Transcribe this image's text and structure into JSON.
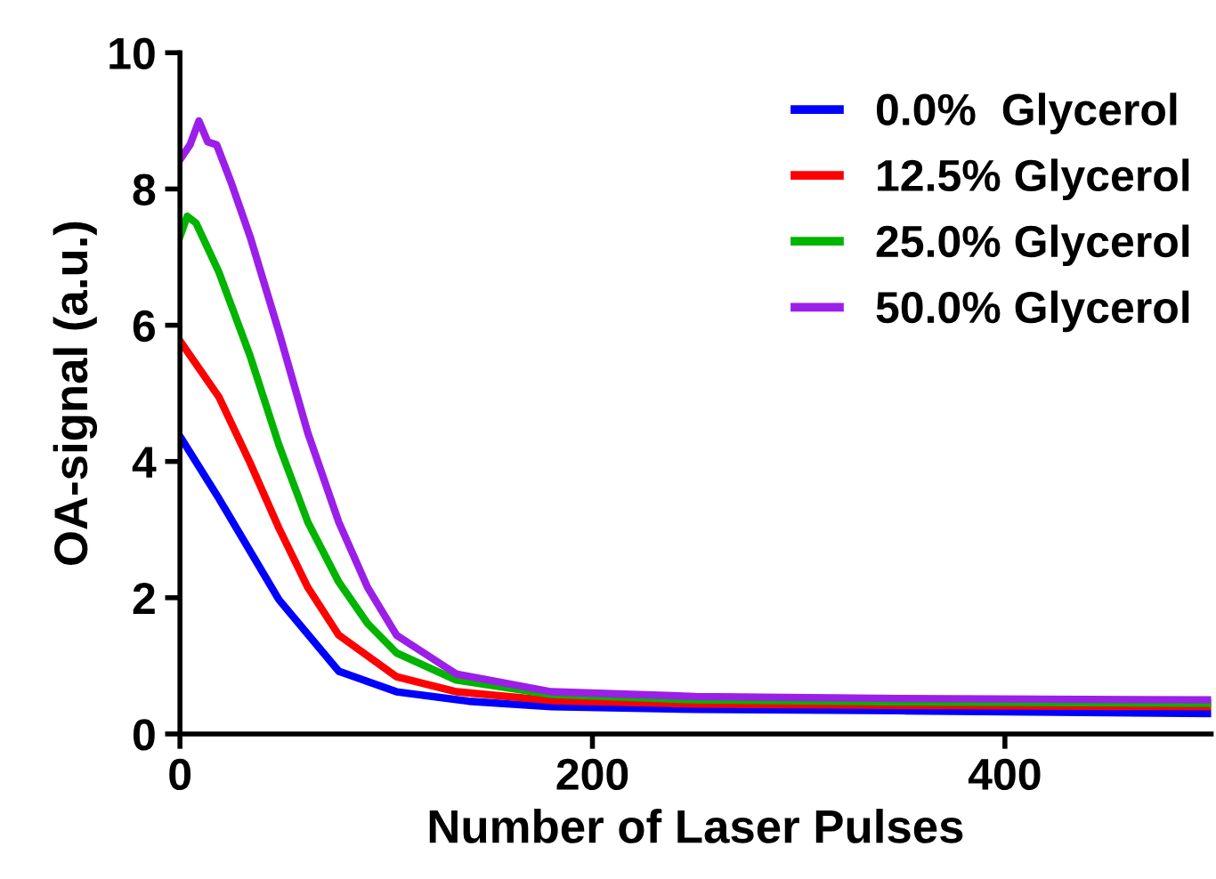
{
  "chart_data": {
    "type": "line",
    "xlabel": "Number of Laser Pulses",
    "ylabel": "OA-signal (a.u.)",
    "xlim": [
      0,
      500
    ],
    "ylim": [
      0,
      10
    ],
    "xticks": [
      0,
      200,
      400
    ],
    "yticks": [
      0,
      2,
      4,
      6,
      8,
      10
    ],
    "grid": false,
    "legend": "top right",
    "marker": "none",
    "line_style": "solid",
    "series": [
      {
        "name": "0.0%  Glycerol",
        "color": "#0000ff",
        "x": [
          0,
          19,
          48,
          77,
          105,
          140,
          180,
          250,
          350,
          500
        ],
        "values": [
          4.37,
          3.45,
          1.97,
          0.92,
          0.62,
          0.48,
          0.4,
          0.36,
          0.34,
          0.3
        ]
      },
      {
        "name": "12.5% Glycerol",
        "color": "#ff0000",
        "x": [
          0,
          19,
          34,
          48,
          62,
          77,
          105,
          134,
          180,
          250,
          350,
          500
        ],
        "values": [
          5.77,
          4.94,
          3.98,
          3.02,
          2.15,
          1.45,
          0.84,
          0.62,
          0.49,
          0.44,
          0.42,
          0.4
        ]
      },
      {
        "name": "25.0% Glycerol",
        "color": "#00b400",
        "x": [
          0,
          3.5,
          7.8,
          19,
          34,
          48,
          62,
          77,
          91,
          105,
          134,
          180,
          250,
          350,
          500
        ],
        "values": [
          7.3,
          7.6,
          7.5,
          6.77,
          5.55,
          4.24,
          3.11,
          2.23,
          1.62,
          1.19,
          0.79,
          0.58,
          0.5,
          0.47,
          0.45
        ]
      },
      {
        "name": "50.0% Glycerol",
        "color": "#9b1fe8",
        "x": [
          0,
          4.9,
          9.2,
          13.5,
          17.8,
          25,
          34,
          48,
          62,
          77,
          91,
          105,
          134,
          180,
          250,
          350,
          500
        ],
        "values": [
          8.43,
          8.65,
          9.0,
          8.69,
          8.65,
          8.08,
          7.3,
          5.9,
          4.42,
          3.11,
          2.15,
          1.45,
          0.88,
          0.62,
          0.55,
          0.52,
          0.5
        ]
      }
    ]
  }
}
